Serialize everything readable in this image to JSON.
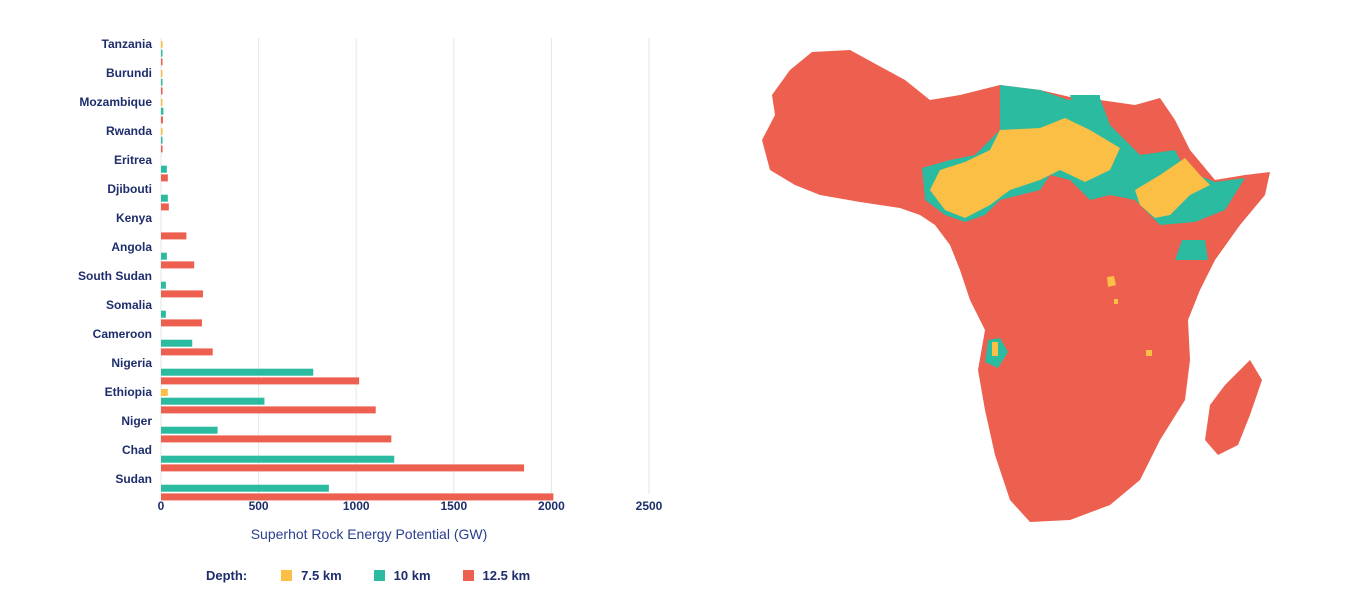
{
  "chart_data": {
    "type": "bar",
    "orientation": "horizontal",
    "categories": [
      "Tanzania",
      "Burundi",
      "Mozambique",
      "Rwanda",
      "Eritrea",
      "Djibouti",
      "Kenya",
      "Angola",
      "South Sudan",
      "Somalia",
      "Cameroon",
      "Nigeria",
      "Ethiopia",
      "Niger",
      "Chad",
      "Sudan"
    ],
    "series": [
      {
        "name": "7.5 km",
        "color": "#fbbf45",
        "values": [
          5,
          5,
          5,
          5,
          0,
          0,
          0,
          0,
          0,
          0,
          0,
          0,
          35,
          0,
          0,
          0
        ]
      },
      {
        "name": "10 km",
        "color": "#2abba1",
        "values": [
          4,
          6,
          12,
          6,
          30,
          35,
          0,
          30,
          25,
          25,
          160,
          780,
          530,
          290,
          1195,
          860
        ]
      },
      {
        "name": "12.5 km",
        "color": "#ed5f4f",
        "values": [
          6,
          8,
          10,
          8,
          35,
          40,
          130,
          170,
          215,
          210,
          265,
          1015,
          1100,
          1180,
          1860,
          2010
        ]
      }
    ],
    "xlabel": "Superhot Rock Energy Potential (GW)",
    "ylabel": "",
    "xticks": [
      "0",
      "500",
      "1000",
      "1500",
      "2000",
      "2500"
    ],
    "xlim": [
      0,
      2500
    ],
    "grid": true
  },
  "legend": {
    "title": "Depth:",
    "items": [
      {
        "label": "7.5 km",
        "color": "#fbbf45"
      },
      {
        "label": "10 km",
        "color": "#2abba1"
      },
      {
        "label": "12.5 km",
        "color": "#ed5f4f"
      }
    ]
  },
  "map": {
    "region": "Africa",
    "colors": {
      "d75": "#fbbf45",
      "d10": "#2abba1",
      "d125": "#ed5f4f"
    }
  }
}
